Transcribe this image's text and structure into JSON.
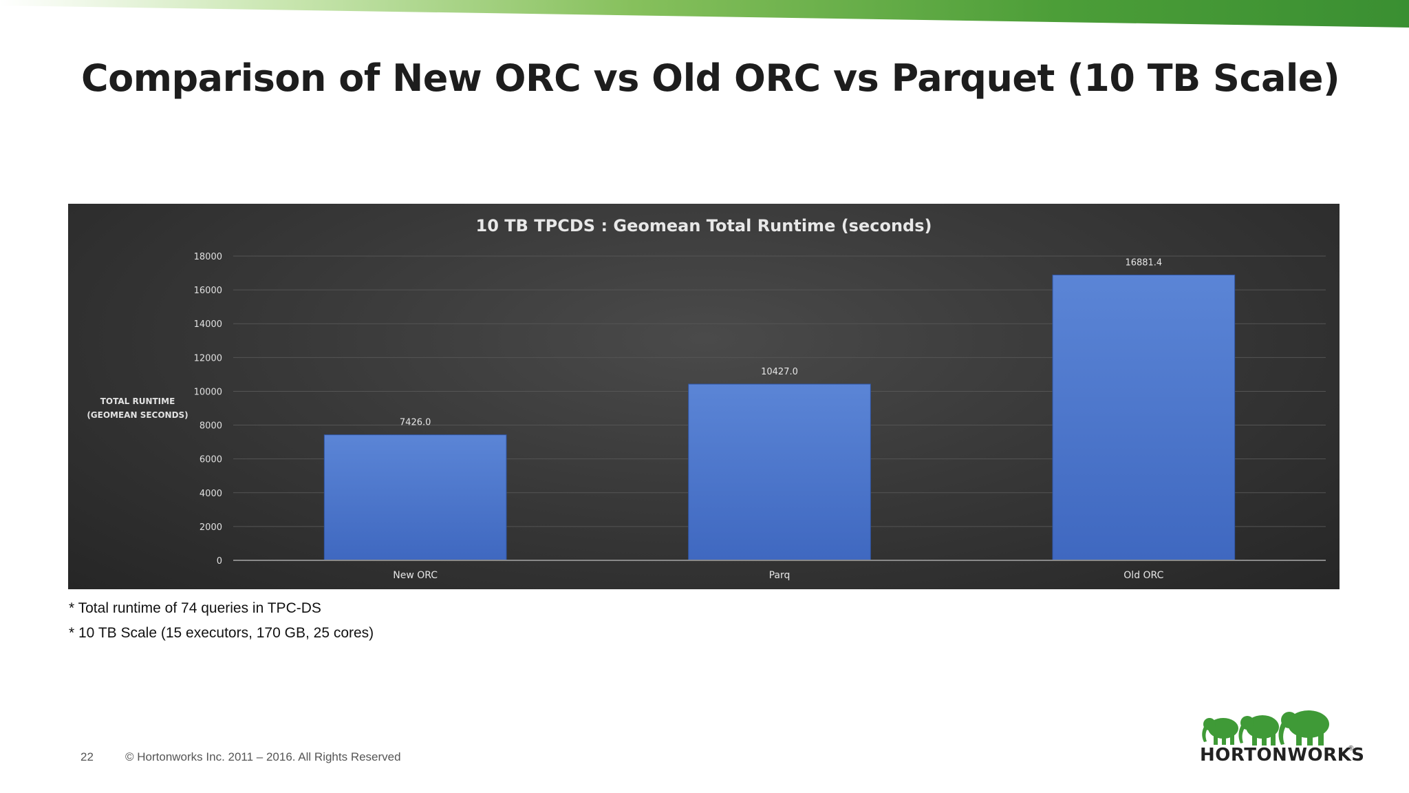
{
  "slide": {
    "title": "Comparison of New ORC vs Old ORC vs Parquet (10 TB Scale)",
    "footnotes": [
      "* Total runtime of 74 queries in TPC-DS",
      "* 10 TB Scale (15 executors, 170 GB, 25 cores)"
    ],
    "page_number": "22",
    "copyright": "© Hortonworks Inc. 2011 – 2016. All Rights Reserved",
    "logo_text": "HORTONWORKS",
    "logo_reg": "®"
  },
  "colors": {
    "accent_green": "#3f9a37",
    "bar_blue": "#4a74c9",
    "chart_background": "#333333"
  },
  "chart_data": {
    "type": "bar",
    "title": "10 TB TPCDS : Geomean Total Runtime (seconds)",
    "ylabel": [
      "TOTAL RUNTIME",
      "(GEOMEAN SECONDS)"
    ],
    "xlabel": "",
    "categories": [
      "New ORC",
      "Parq",
      "Old ORC"
    ],
    "values": [
      7426.0,
      10427.0,
      16881.4
    ],
    "value_labels": [
      "7426.0",
      "10427.0",
      "16881.4"
    ],
    "ylim": [
      0,
      18000
    ],
    "yticks": [
      0,
      2000,
      4000,
      6000,
      8000,
      10000,
      12000,
      14000,
      16000,
      18000
    ],
    "grid": true,
    "legend": "none"
  }
}
